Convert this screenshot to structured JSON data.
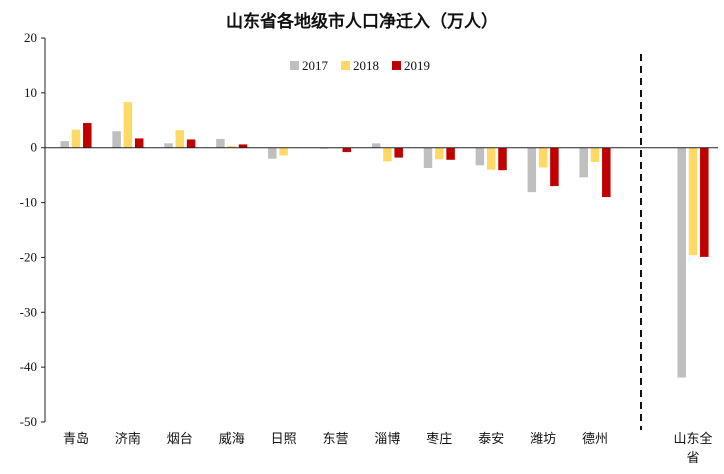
{
  "chart_data": {
    "type": "bar",
    "title": "山东省各地级市人口净迁入（万人）",
    "xlabel": "",
    "ylabel": "",
    "ylim": [
      -50,
      20
    ],
    "yticks": [
      20,
      10,
      0,
      -10,
      -20,
      -30,
      -40,
      -50
    ],
    "categories": [
      "青岛",
      "济南",
      "烟台",
      "威海",
      "日照",
      "东营",
      "淄博",
      "枣庄",
      "泰安",
      "潍坊",
      "德州",
      "山东全省"
    ],
    "series": [
      {
        "name": "2017",
        "color": "#BFBFBF",
        "values": [
          1.2,
          3.0,
          0.8,
          1.6,
          -2.0,
          -0.2,
          0.8,
          -3.7,
          -3.2,
          -8.1,
          -5.4,
          -41.9
        ]
      },
      {
        "name": "2018",
        "color": "#FFD966",
        "values": [
          3.3,
          8.3,
          3.2,
          0.3,
          -1.4,
          -0.1,
          -2.5,
          -2.1,
          -4.0,
          -3.6,
          -2.6,
          -19.6
        ]
      },
      {
        "name": "2019",
        "color": "#C00000",
        "values": [
          4.5,
          1.7,
          1.5,
          0.6,
          0.0,
          -0.8,
          -1.8,
          -2.2,
          -4.1,
          -7.0,
          -9.0,
          -19.9
        ]
      }
    ],
    "legend": "top-center",
    "grid": false,
    "separator": "dashed vertical line before 山东全省"
  }
}
